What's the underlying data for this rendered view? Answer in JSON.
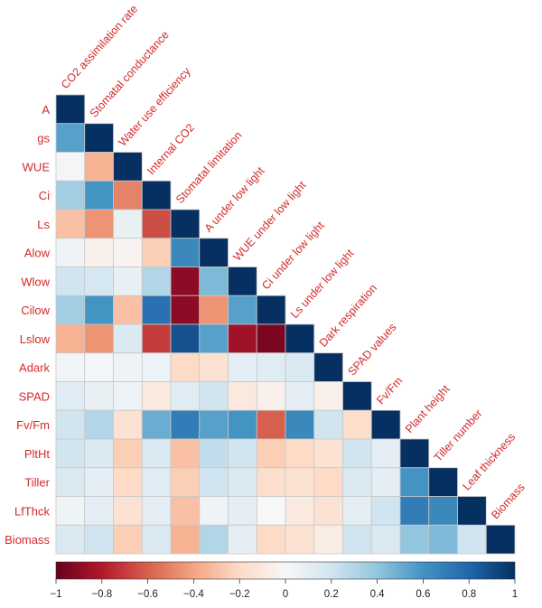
{
  "chart_data": {
    "type": "heatmap",
    "title": "",
    "row_labels": [
      "A",
      "gs",
      "WUE",
      "Ci",
      "Ls",
      "Alow",
      "Wlow",
      "Cilow",
      "Lslow",
      "Adark",
      "SPAD",
      "Fv/Fm",
      "PltHt",
      "Tiller",
      "LfThck",
      "Biomass"
    ],
    "col_labels": [
      "CO2 assimilation rate",
      "Stomatal conductance",
      "Water use efficiency",
      "Internal CO2",
      "Stomatal limitation",
      "A under low light",
      "WUE under low light",
      "Ci under low light",
      "Ls under low light",
      "Dark respiration",
      "SPAD values",
      "Fv/Fm",
      "Plant height",
      "Tiller number",
      "Leaf thickness",
      "Biomass"
    ],
    "values": [
      [
        1
      ],
      [
        0.55,
        1
      ],
      [
        0.02,
        -0.35,
        1
      ],
      [
        0.35,
        0.6,
        -0.5,
        1
      ],
      [
        -0.3,
        -0.45,
        0.08,
        -0.65,
        1
      ],
      [
        0.05,
        -0.05,
        -0.03,
        -0.25,
        0.65,
        1
      ],
      [
        0.2,
        0.18,
        0.08,
        0.3,
        -0.9,
        0.45,
        1
      ],
      [
        0.35,
        0.6,
        -0.3,
        0.75,
        -0.9,
        -0.45,
        0.55,
        1
      ],
      [
        -0.35,
        -0.45,
        0.15,
        -0.7,
        0.88,
        0.55,
        -0.85,
        -0.95,
        1
      ],
      [
        0.03,
        0.02,
        0.05,
        0.06,
        -0.2,
        -0.15,
        0.1,
        0.12,
        0.15,
        1
      ],
      [
        0.12,
        0.08,
        0.06,
        -0.1,
        0.12,
        0.2,
        -0.1,
        -0.05,
        0.1,
        -0.05,
        1
      ],
      [
        0.2,
        0.3,
        -0.15,
        0.5,
        0.7,
        0.55,
        0.6,
        -0.6,
        0.65,
        0.2,
        -0.18,
        1
      ],
      [
        0.2,
        0.15,
        -0.25,
        0.15,
        -0.3,
        0.25,
        0.2,
        -0.25,
        -0.2,
        -0.15,
        0.2,
        0.1,
        1
      ],
      [
        0.15,
        0.1,
        -0.2,
        0.12,
        -0.25,
        0.2,
        0.15,
        -0.18,
        -0.15,
        -0.2,
        0.15,
        0.1,
        0.6,
        1
      ],
      [
        0.05,
        0.1,
        -0.15,
        0.1,
        -0.3,
        0.05,
        0.1,
        0.0,
        -0.1,
        -0.15,
        0.1,
        0.2,
        0.7,
        0.65,
        1
      ],
      [
        0.15,
        0.2,
        -0.25,
        0.15,
        -0.35,
        0.3,
        0.1,
        -0.2,
        -0.15,
        -0.08,
        0.2,
        0.15,
        0.4,
        0.45,
        0.2,
        1
      ]
    ],
    "colorbar": {
      "range": [
        -1,
        1
      ],
      "ticks": [
        "−1",
        "−0.8",
        "−0.6",
        "−0.4",
        "−0.2",
        "0",
        "0.2",
        "0.4",
        "0.6",
        "0.8",
        "1"
      ],
      "colors": {
        "neg": "#67001f",
        "mid": "#f7f7f7",
        "pos": "#053061"
      }
    },
    "label_color": "#d42a2a"
  }
}
